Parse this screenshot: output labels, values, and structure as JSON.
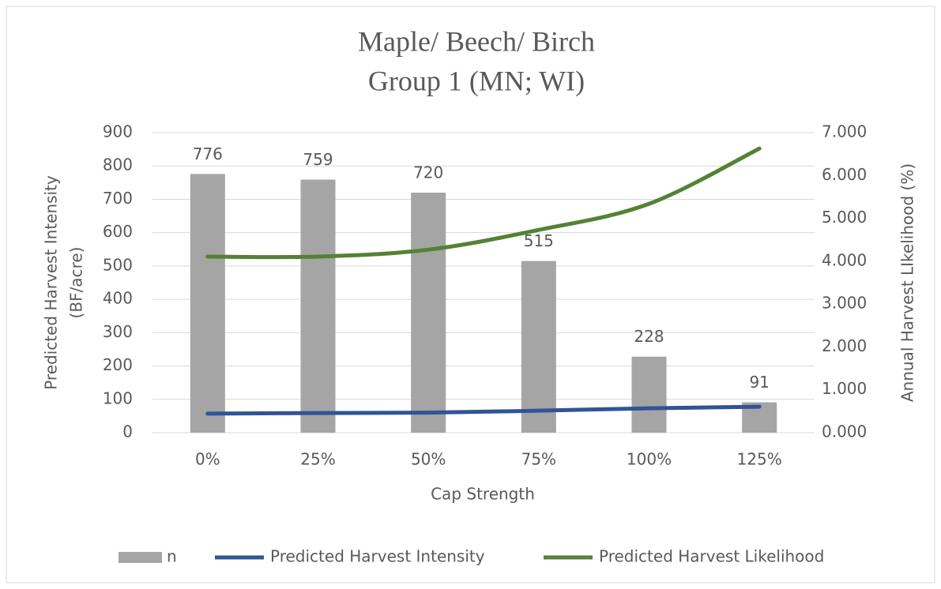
{
  "chart_data": {
    "type": "combo",
    "title": "Maple/ Beech/ Birch",
    "subtitle": "Group 1 (MN; WI)",
    "xlabel": "Cap Strength",
    "ylabel": [
      "Predicted Harvest Intensity",
      "(BF/acre)"
    ],
    "y2label": "Annual Harvest LIkelihood (%)",
    "categories": [
      "0%",
      "25%",
      "50%",
      "75%",
      "100%",
      "125%"
    ],
    "series": [
      {
        "name": "n",
        "type": "bar",
        "color": "#a5a5a5",
        "values": [
          776,
          759,
          720,
          515,
          228,
          91
        ]
      },
      {
        "name": "Predicted Harvest Intensity",
        "type": "line",
        "color": "#2f5597",
        "values": [
          57,
          59,
          60,
          66,
          73,
          78
        ]
      },
      {
        "name": "Predicted Harvest Likelihood",
        "type": "line",
        "axis": "y2",
        "color": "#548235",
        "values": [
          4.108,
          4.108,
          4.27,
          4.73,
          5.34,
          6.63
        ]
      }
    ],
    "ylim": [
      0,
      900
    ],
    "yticks": [
      0,
      100,
      200,
      300,
      400,
      500,
      600,
      700,
      800,
      900
    ],
    "y2lim": [
      0,
      7
    ],
    "y2ticks": [
      {
        "value": 0,
        "label": "0.000"
      },
      {
        "value": 1,
        "label": "1.000"
      },
      {
        "value": 2,
        "label": "2.000"
      },
      {
        "value": 3,
        "label": "3.000"
      },
      {
        "value": 4,
        "label": "4.000"
      },
      {
        "value": 5,
        "label": "5.000"
      },
      {
        "value": 6,
        "label": "6.000"
      },
      {
        "value": 7,
        "label": "7.000"
      }
    ],
    "grid": true,
    "legend": "bottom"
  }
}
